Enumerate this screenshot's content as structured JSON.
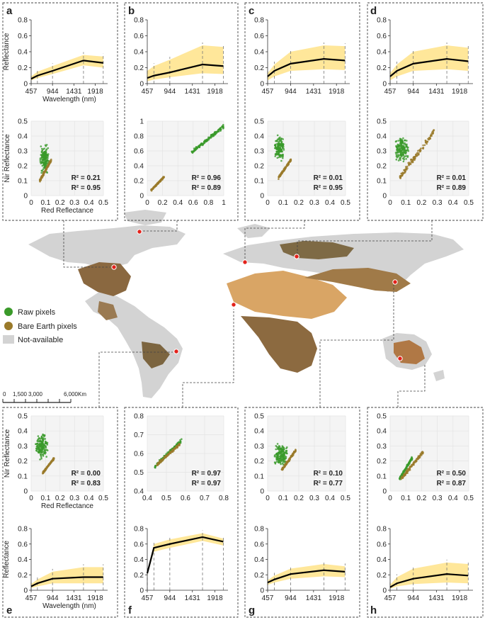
{
  "colors": {
    "band": "#ffe79a",
    "mean_line": "#000000",
    "raw": "#3a9a2a",
    "bare": "#9a7a2a",
    "raw_text": "#2e8b22",
    "bare_text": "#8a6a1e",
    "grid": "#e3e3e3",
    "na": "#d3d3d3",
    "site": "#e3221b"
  },
  "axis_labels": {
    "reflectance": "Reflectance",
    "wavelength": "Wavelength (nm)",
    "nir": "Nir Reflectance",
    "red": "Red Reflectance"
  },
  "legend": {
    "raw": "Raw pixels",
    "bare": "Bare Earth pixels",
    "na": "Not-available"
  },
  "scalebar": {
    "labels": [
      "0",
      "1,500",
      "3,000",
      "6,000"
    ],
    "unit": "Km"
  },
  "chart_data": [
    {
      "panel": "a",
      "type": "line",
      "x": [
        457,
        600,
        944,
        1650,
        2100
      ],
      "mean": [
        0.06,
        0.1,
        0.16,
        0.29,
        0.26
      ],
      "upper": [
        0.09,
        0.15,
        0.22,
        0.36,
        0.34
      ],
      "lower": [
        0.04,
        0.07,
        0.12,
        0.23,
        0.2
      ],
      "ylim": [
        0,
        0.8
      ],
      "yticks": [
        0,
        0.2,
        0.4,
        0.6,
        0.8
      ],
      "xticks": [
        457,
        944,
        1431,
        1918
      ]
    },
    {
      "panel": "a",
      "type": "scatter",
      "ylim": [
        0,
        0.5
      ],
      "xlim": [
        0,
        0.5
      ],
      "xticks": [
        0,
        0.1,
        0.2,
        0.3,
        0.4,
        0.5
      ],
      "yticks": [
        0,
        0.1,
        0.2,
        0.3,
        0.4,
        0.5
      ],
      "raw_cluster": {
        "x": [
          0.06,
          0.13
        ],
        "y": [
          0.12,
          0.36
        ]
      },
      "bare_cluster": {
        "x": [
          0.06,
          0.14
        ],
        "y": [
          0.1,
          0.24
        ]
      },
      "r2_raw": "R² = 0.21",
      "r2_bare": "R² = 0.95"
    },
    {
      "panel": "b",
      "type": "line",
      "x": [
        457,
        600,
        944,
        1650,
        2100
      ],
      "mean": [
        0.07,
        0.1,
        0.14,
        0.24,
        0.22
      ],
      "upper": [
        0.16,
        0.22,
        0.3,
        0.48,
        0.46
      ],
      "lower": [
        0.03,
        0.05,
        0.08,
        0.13,
        0.12
      ],
      "ylim": [
        0,
        0.8
      ],
      "yticks": [
        0,
        0.2,
        0.4,
        0.6,
        0.8
      ],
      "xticks": [
        457,
        944,
        1431,
        1918
      ]
    },
    {
      "panel": "b",
      "type": "scatter",
      "ylim": [
        0,
        1
      ],
      "xlim": [
        0,
        1
      ],
      "xticks": [
        0,
        0.2,
        0.4,
        0.6,
        0.8,
        1
      ],
      "yticks": [
        0,
        0.2,
        0.4,
        0.6,
        0.8,
        1
      ],
      "raw_cluster": {
        "x": [
          0.58,
          1.0
        ],
        "y": [
          0.58,
          0.93
        ]
      },
      "bare_cluster": {
        "x": [
          0.05,
          0.22
        ],
        "y": [
          0.07,
          0.25
        ]
      },
      "r2_raw": "R² = 0.96",
      "r2_bare": "R² = 0.89"
    },
    {
      "panel": "c",
      "type": "line",
      "x": [
        457,
        600,
        944,
        1650,
        2100
      ],
      "mean": [
        0.09,
        0.16,
        0.25,
        0.31,
        0.29
      ],
      "upper": [
        0.13,
        0.24,
        0.4,
        0.48,
        0.47
      ],
      "lower": [
        0.04,
        0.09,
        0.16,
        0.18,
        0.17
      ],
      "ylim": [
        0,
        0.8
      ],
      "yticks": [
        0,
        0.2,
        0.4,
        0.6,
        0.8
      ],
      "xticks": [
        457,
        944,
        1431,
        1918
      ]
    },
    {
      "panel": "c",
      "type": "scatter",
      "ylim": [
        0,
        0.5
      ],
      "xlim": [
        0,
        0.5
      ],
      "xticks": [
        0,
        0.1,
        0.2,
        0.3,
        0.4,
        0.5
      ],
      "yticks": [
        0,
        0.1,
        0.2,
        0.3,
        0.4,
        0.5
      ],
      "raw_cluster": {
        "x": [
          0.04,
          0.11
        ],
        "y": [
          0.21,
          0.42
        ]
      },
      "bare_cluster": {
        "x": [
          0.07,
          0.15
        ],
        "y": [
          0.12,
          0.24
        ]
      },
      "r2_raw": "R² = 0.01",
      "r2_bare": "R² = 0.95"
    },
    {
      "panel": "d",
      "type": "line",
      "x": [
        457,
        600,
        944,
        1650,
        2100
      ],
      "mean": [
        0.09,
        0.16,
        0.25,
        0.31,
        0.28
      ],
      "upper": [
        0.13,
        0.24,
        0.4,
        0.48,
        0.45
      ],
      "lower": [
        0.04,
        0.09,
        0.16,
        0.18,
        0.16
      ],
      "ylim": [
        0,
        0.8
      ],
      "yticks": [
        0,
        0.2,
        0.4,
        0.6,
        0.8
      ],
      "xticks": [
        457,
        944,
        1431,
        1918
      ]
    },
    {
      "panel": "d",
      "type": "scatter",
      "ylim": [
        0,
        0.5
      ],
      "xlim": [
        0,
        0.5
      ],
      "xticks": [
        0,
        0.1,
        0.2,
        0.3,
        0.4,
        0.5
      ],
      "yticks": [
        0,
        0.1,
        0.2,
        0.3,
        0.4,
        0.5
      ],
      "raw_cluster": {
        "x": [
          0.03,
          0.12
        ],
        "y": [
          0.2,
          0.42
        ]
      },
      "bare_cluster": {
        "x": [
          0.06,
          0.28
        ],
        "y": [
          0.12,
          0.43
        ]
      },
      "r2_raw": "R² = 0.01",
      "r2_bare": "R² = 0.89"
    },
    {
      "panel": "e",
      "type": "scatter",
      "ylim": [
        0,
        0.5
      ],
      "xlim": [
        0,
        0.5
      ],
      "xticks": [
        0,
        0.1,
        0.2,
        0.3,
        0.4,
        0.5
      ],
      "yticks": [
        0,
        0.1,
        0.2,
        0.3,
        0.4,
        0.5
      ],
      "raw_cluster": {
        "x": [
          0.03,
          0.12
        ],
        "y": [
          0.2,
          0.4
        ]
      },
      "bare_cluster": {
        "x": [
          0.08,
          0.16
        ],
        "y": [
          0.12,
          0.22
        ]
      },
      "r2_raw": "R² = 0.00",
      "r2_bare": "R² = 0.83"
    },
    {
      "panel": "e",
      "type": "line",
      "x": [
        457,
        600,
        944,
        1650,
        2100
      ],
      "mean": [
        0.05,
        0.09,
        0.15,
        0.17,
        0.17
      ],
      "upper": [
        0.08,
        0.14,
        0.24,
        0.3,
        0.3
      ],
      "lower": [
        0.03,
        0.05,
        0.09,
        0.09,
        0.09
      ],
      "ylim": [
        0,
        0.8
      ],
      "yticks": [
        0,
        0.2,
        0.4,
        0.6,
        0.8
      ],
      "xticks": [
        457,
        944,
        1431,
        1918
      ]
    },
    {
      "panel": "f",
      "type": "scatter",
      "ylim": [
        0.4,
        0.8
      ],
      "xlim": [
        0.4,
        0.8
      ],
      "xticks": [
        0.4,
        0.5,
        0.6,
        0.7,
        0.8
      ],
      "yticks": [
        0.4,
        0.5,
        0.6,
        0.7,
        0.8
      ],
      "raw_cluster": {
        "x": [
          0.44,
          0.58
        ],
        "y": [
          0.53,
          0.67
        ]
      },
      "bare_cluster": {
        "x": [
          0.45,
          0.57
        ],
        "y": [
          0.54,
          0.65
        ]
      },
      "r2_raw": "R² = 0.97",
      "r2_bare": "R² = 0.97"
    },
    {
      "panel": "f",
      "type": "line",
      "x": [
        457,
        600,
        944,
        1650,
        2100
      ],
      "mean": [
        0.22,
        0.55,
        0.6,
        0.69,
        0.63
      ],
      "upper": [
        0.25,
        0.6,
        0.66,
        0.74,
        0.67
      ],
      "lower": [
        0.19,
        0.5,
        0.55,
        0.64,
        0.58
      ],
      "ylim": [
        0,
        0.8
      ],
      "yticks": [
        0,
        0.2,
        0.4,
        0.6,
        0.8
      ],
      "xticks": [
        457,
        944,
        1431,
        1918
      ]
    },
    {
      "panel": "g",
      "type": "scatter",
      "ylim": [
        0,
        0.5
      ],
      "xlim": [
        0,
        0.5
      ],
      "xticks": [
        0,
        0.1,
        0.2,
        0.3,
        0.4,
        0.5
      ],
      "yticks": [
        0,
        0.1,
        0.2,
        0.3,
        0.4,
        0.5
      ],
      "raw_cluster": {
        "x": [
          0.04,
          0.13
        ],
        "y": [
          0.16,
          0.33
        ]
      },
      "bare_cluster": {
        "x": [
          0.09,
          0.18
        ],
        "y": [
          0.14,
          0.27
        ]
      },
      "r2_raw": "R² = 0.10",
      "r2_bare": "R² = 0.77"
    },
    {
      "panel": "g",
      "type": "line",
      "x": [
        457,
        600,
        944,
        1650,
        2100
      ],
      "mean": [
        0.1,
        0.14,
        0.21,
        0.26,
        0.24
      ],
      "upper": [
        0.13,
        0.19,
        0.28,
        0.34,
        0.31
      ],
      "lower": [
        0.07,
        0.1,
        0.15,
        0.18,
        0.17
      ],
      "ylim": [
        0,
        0.8
      ],
      "yticks": [
        0,
        0.2,
        0.4,
        0.6,
        0.8
      ],
      "xticks": [
        457,
        944,
        1431,
        1918
      ]
    },
    {
      "panel": "h",
      "type": "scatter",
      "ylim": [
        0,
        0.5
      ],
      "xlim": [
        0,
        0.5
      ],
      "xticks": [
        0,
        0.1,
        0.2,
        0.3,
        0.4,
        0.5
      ],
      "yticks": [
        0,
        0.1,
        0.2,
        0.3,
        0.4,
        0.5
      ],
      "raw_cluster": {
        "x": [
          0.06,
          0.14
        ],
        "y": [
          0.08,
          0.22
        ]
      },
      "bare_cluster": {
        "x": [
          0.07,
          0.21
        ],
        "y": [
          0.08,
          0.26
        ]
      },
      "r2_raw": "R² = 0.50",
      "r2_bare": "R² = 0.87"
    },
    {
      "panel": "h",
      "type": "line",
      "x": [
        457,
        600,
        944,
        1650,
        2100
      ],
      "mean": [
        0.04,
        0.09,
        0.15,
        0.21,
        0.19
      ],
      "upper": [
        0.07,
        0.17,
        0.28,
        0.36,
        0.34
      ],
      "lower": [
        0.02,
        0.05,
        0.08,
        0.1,
        0.09
      ],
      "ylim": [
        0,
        0.8
      ],
      "yticks": [
        0,
        0.2,
        0.4,
        0.6,
        0.8
      ],
      "xticks": [
        457,
        944,
        1431,
        1918
      ]
    }
  ]
}
